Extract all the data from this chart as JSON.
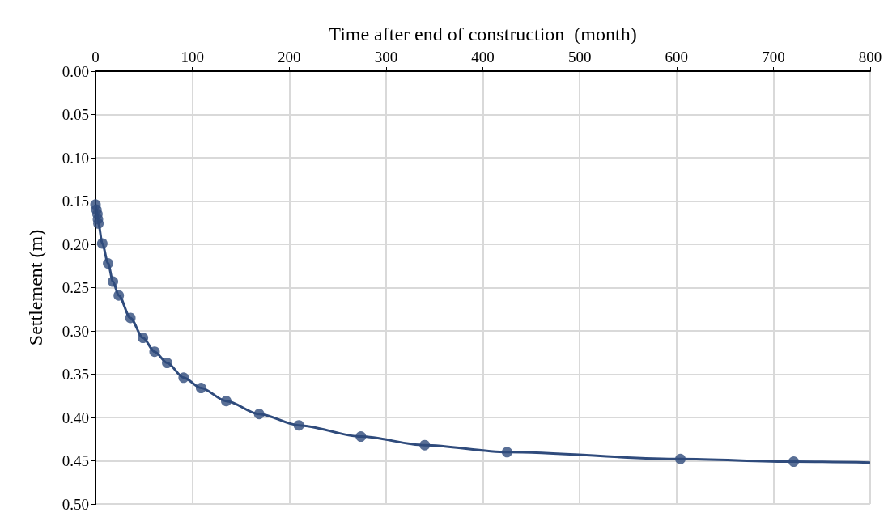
{
  "chart_data": {
    "type": "line",
    "xlabel": "Time after end of construction  (month)",
    "ylabel": "Settlement (m)",
    "xlim": [
      0,
      800
    ],
    "xticks": [
      0,
      100,
      200,
      300,
      400,
      500,
      600,
      700,
      800
    ],
    "ylim": [
      0.5,
      0
    ],
    "yticks": [
      {
        "value": 0,
        "label": "0.00"
      },
      {
        "value": 0.05,
        "label": "0.05"
      },
      {
        "value": 0.1,
        "label": "0.10"
      },
      {
        "value": 0.15,
        "label": "0.15"
      },
      {
        "value": 0.2,
        "label": "0.20"
      },
      {
        "value": 0.25,
        "label": "0.25"
      },
      {
        "value": 0.3,
        "label": "0.30"
      },
      {
        "value": 0.35,
        "label": "0.35"
      },
      {
        "value": 0.4,
        "label": "0.40"
      },
      {
        "value": 0.45,
        "label": "0.45"
      },
      {
        "value": 0.5,
        "label": "0.50"
      }
    ],
    "grid": true,
    "series": [
      {
        "marker": "none",
        "color": "#2f4b7c",
        "x": [
          0,
          1,
          2,
          2.5,
          3,
          7,
          13,
          18,
          24,
          36,
          49,
          61,
          74,
          91,
          109,
          135,
          169,
          210,
          274,
          340,
          425,
          604,
          721,
          800
        ],
        "values": [
          0.154,
          0.16,
          0.165,
          0.171,
          0.176,
          0.199,
          0.222,
          0.243,
          0.259,
          0.285,
          0.308,
          0.324,
          0.337,
          0.354,
          0.366,
          0.381,
          0.396,
          0.409,
          0.422,
          0.432,
          0.44,
          0.448,
          0.451,
          0.452
        ]
      },
      {
        "type": "scatter",
        "marker": "circle",
        "color": "#2f4b7c",
        "x": [
          0,
          1,
          2,
          2.5,
          3,
          7,
          13,
          18,
          24,
          36,
          49,
          61,
          74,
          91,
          109,
          135,
          169,
          210,
          274,
          340,
          425,
          604,
          721
        ],
        "values": [
          0.154,
          0.16,
          0.165,
          0.171,
          0.176,
          0.199,
          0.222,
          0.243,
          0.259,
          0.285,
          0.308,
          0.324,
          0.337,
          0.354,
          0.366,
          0.381,
          0.396,
          0.409,
          0.422,
          0.432,
          0.44,
          0.448,
          0.451
        ]
      }
    ]
  }
}
